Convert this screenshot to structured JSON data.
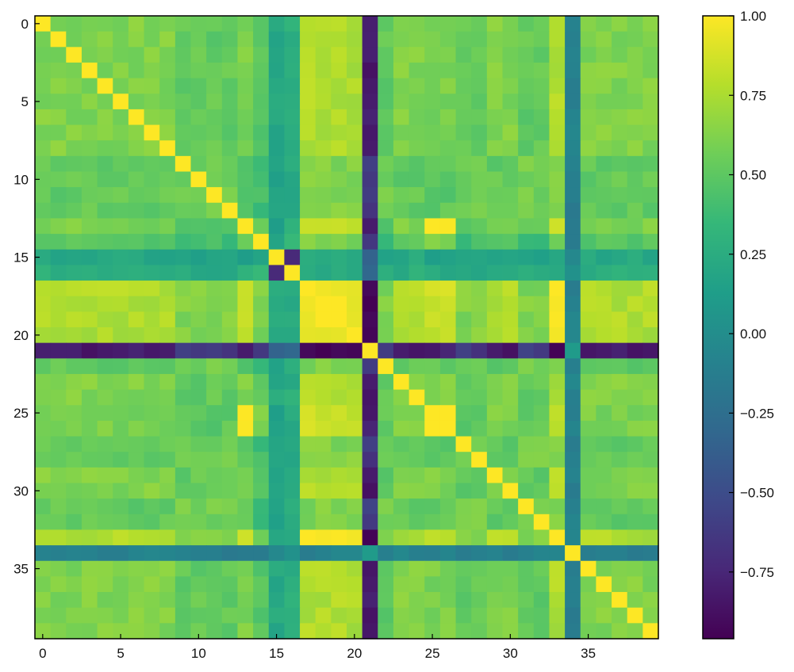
{
  "chart_data": {
    "type": "heatmap",
    "colormap": "viridis",
    "colormap_stops": [
      "#440154",
      "#482878",
      "#3e4989",
      "#31688e",
      "#26828e",
      "#1f9e89",
      "#35b779",
      "#6ece58",
      "#b5de2b",
      "#fde725"
    ],
    "n_rows": 40,
    "n_cols": 40,
    "title": "",
    "xlabel": "",
    "ylabel": "",
    "x_ticks": [
      0,
      5,
      10,
      15,
      20,
      25,
      30,
      35
    ],
    "y_ticks": [
      0,
      5,
      10,
      15,
      20,
      25,
      30,
      35
    ],
    "colorbar": {
      "range": [
        -0.96,
        1.0
      ],
      "ticks": [
        1.0,
        0.75,
        0.5,
        0.25,
        0.0,
        -0.25,
        -0.5,
        -0.75
      ],
      "tick_labels": [
        "1.00",
        "0.75",
        "0.50",
        "0.25",
        "0.00",
        "−0.25",
        "−0.50",
        "−0.75"
      ]
    },
    "grid": false,
    "variable_groups": {
      "A": [
        0,
        1,
        2,
        3,
        4,
        5,
        6,
        7,
        8,
        23,
        24,
        29,
        30,
        35,
        36,
        37,
        38,
        39
      ],
      "B": [
        9,
        10,
        11,
        12,
        22,
        27,
        28,
        31,
        32
      ],
      "C": [
        13,
        25,
        26
      ],
      "D": [
        17,
        18,
        19,
        20,
        33
      ],
      "E": [
        14
      ],
      "F": [
        15
      ],
      "G": [
        16
      ],
      "H": [
        21
      ],
      "I": [
        34
      ]
    },
    "group_correlations": {
      "A-A": 0.62,
      "A-B": 0.52,
      "A-C": 0.6,
      "A-D": 0.76,
      "A-E": 0.48,
      "A-F": 0.22,
      "A-G": 0.26,
      "A-H": -0.82,
      "A-I": -0.1,
      "B-B": 0.58,
      "B-C": 0.5,
      "B-D": 0.62,
      "B-E": 0.4,
      "B-F": 0.18,
      "B-G": 0.22,
      "B-H": -0.62,
      "B-I": -0.12,
      "C-C": 0.98,
      "C-D": 0.84,
      "C-E": 0.6,
      "C-F": 0.15,
      "C-G": 0.25,
      "C-H": -0.8,
      "C-I": -0.1,
      "D-D": 0.97,
      "D-E": 0.6,
      "D-F": 0.2,
      "D-G": 0.25,
      "D-H": -0.95,
      "D-I": -0.1,
      "E-E": 1.0,
      "E-F": 0.18,
      "E-G": 0.3,
      "E-H": -0.65,
      "E-I": -0.15,
      "F-F": 1.0,
      "F-G": -0.7,
      "F-H": -0.3,
      "F-I": -0.05,
      "G-G": 1.0,
      "G-H": -0.35,
      "G-I": 0.0,
      "H-H": 1.0,
      "H-I": 0.1,
      "I-I": 1.0
    },
    "diagonal": 1.0
  }
}
